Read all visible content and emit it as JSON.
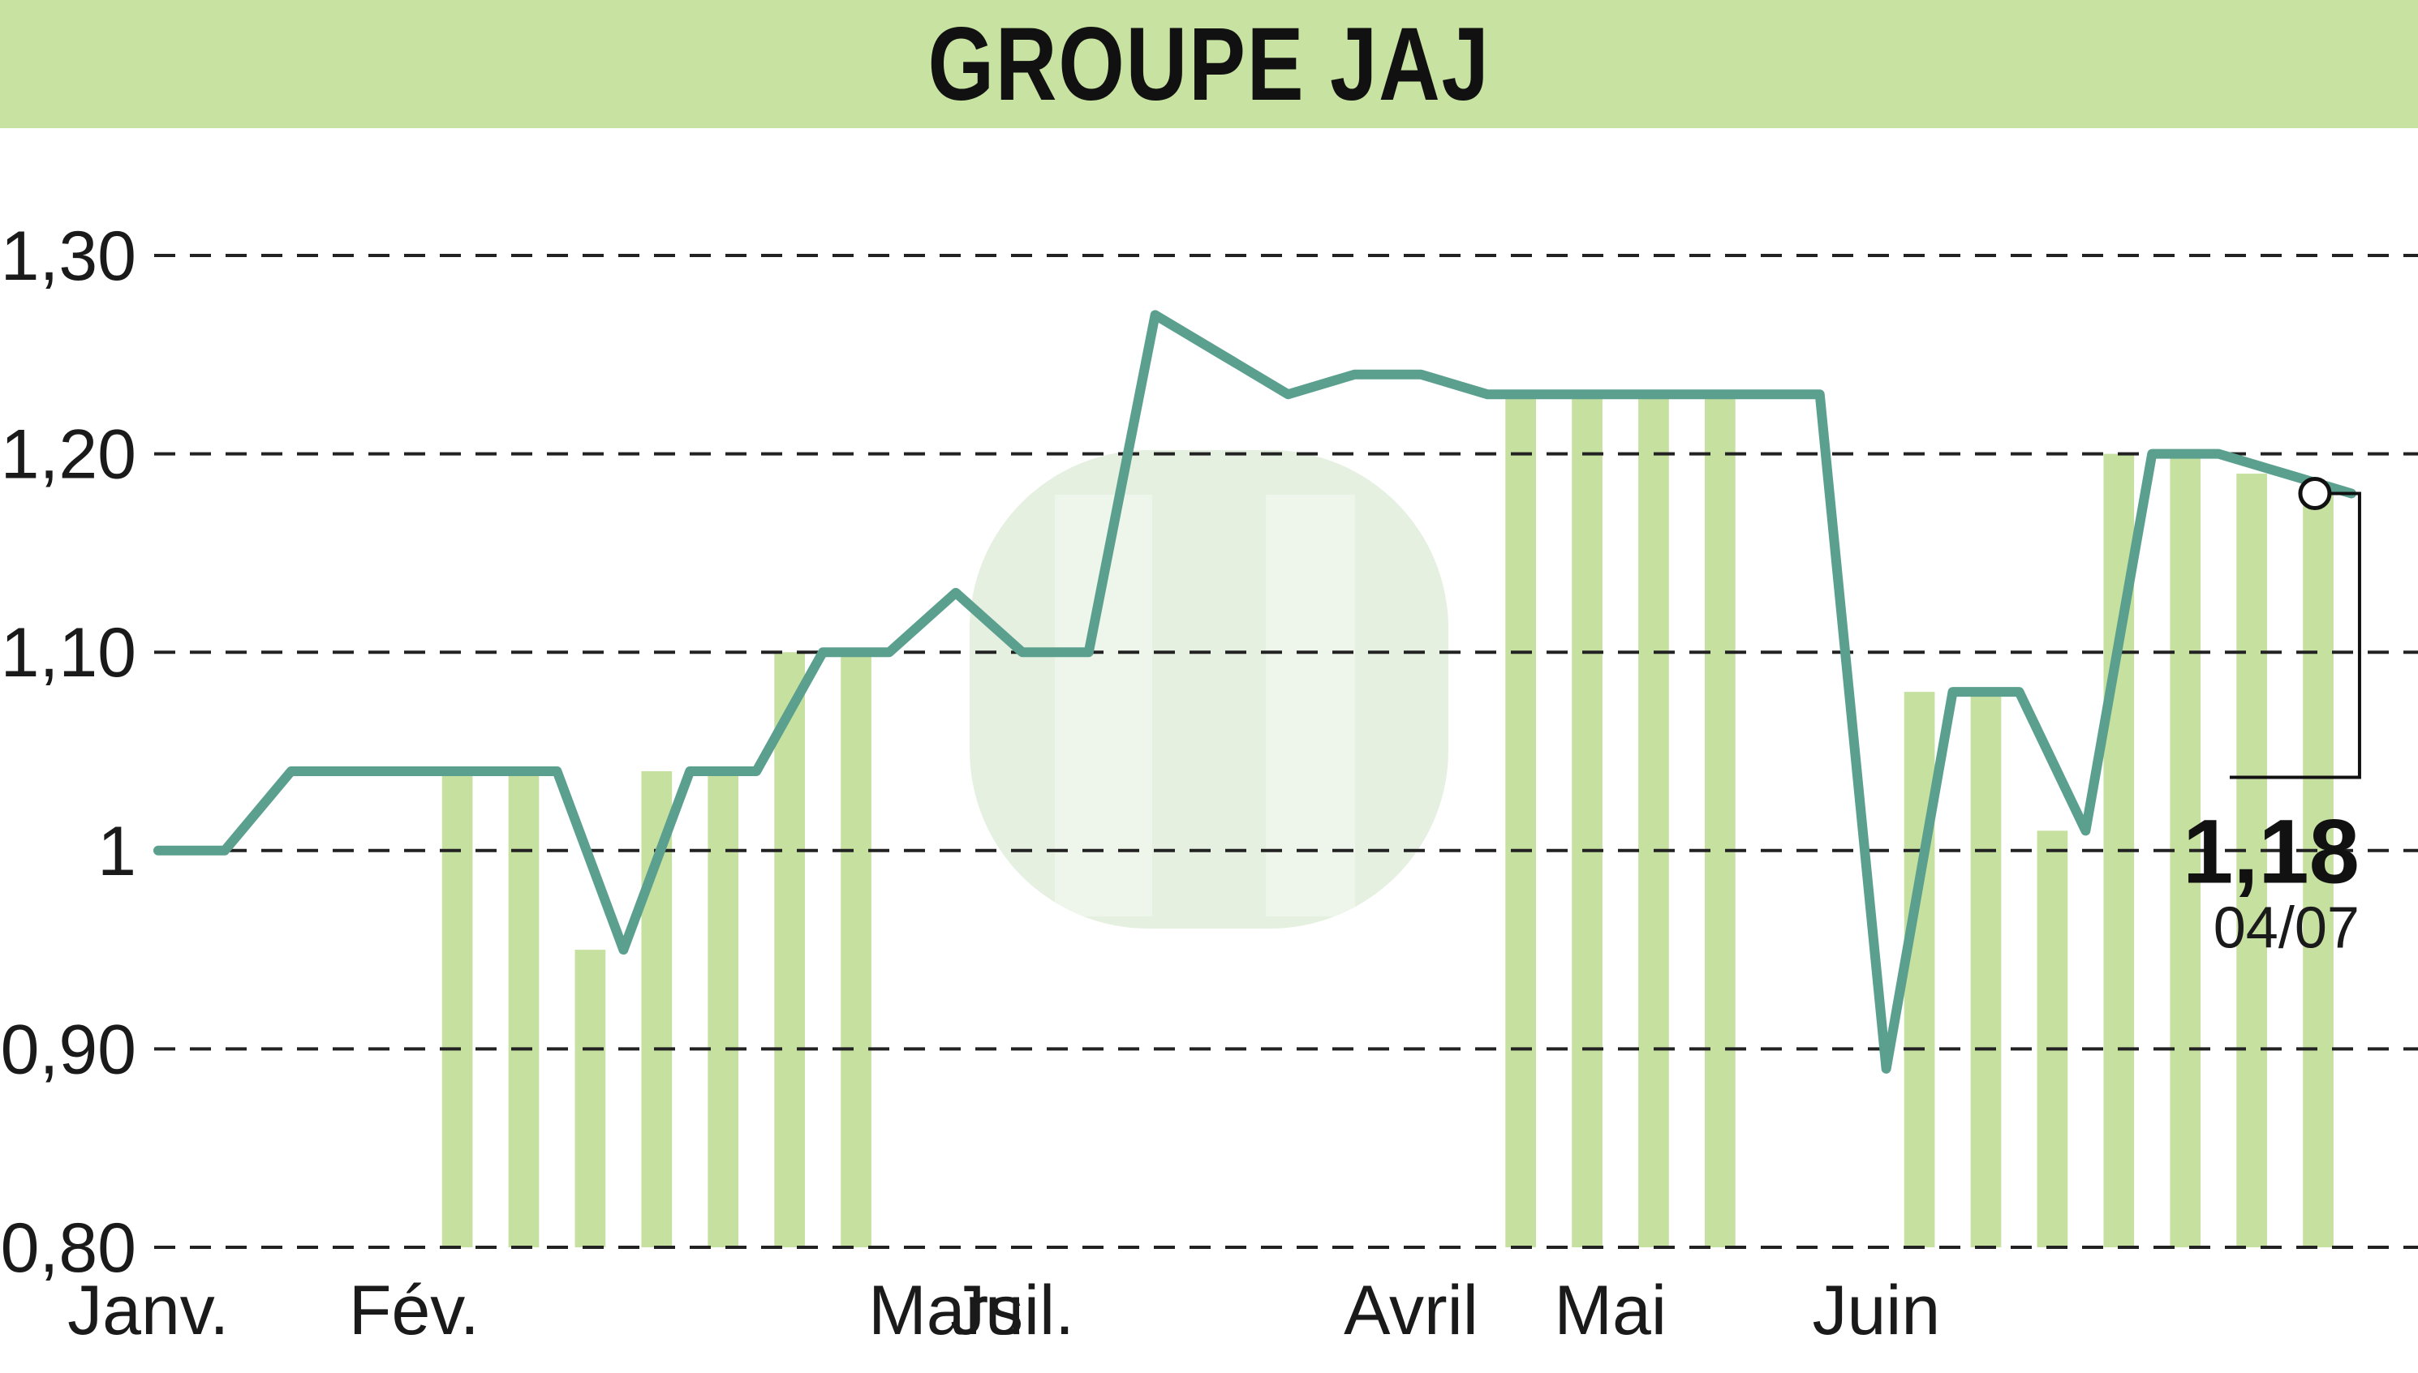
{
  "title": "GROUPE JAJ",
  "colors": {
    "header_bg": "#c8e2a2",
    "bar": "#c6e0a0",
    "line": "#5ba08e",
    "grid": "#222222",
    "watermark": "#cfe4c8"
  },
  "chart_data": {
    "type": "line",
    "title": "GROUPE JAJ",
    "xlabel": "",
    "ylabel": "",
    "ylim": [
      0.8,
      1.3
    ],
    "yticks": [
      {
        "value": 1.3,
        "label": "1,30"
      },
      {
        "value": 1.2,
        "label": "1,20"
      },
      {
        "value": 1.1,
        "label": "1,10"
      },
      {
        "value": 1.0,
        "label": "1"
      },
      {
        "value": 0.9,
        "label": "0,90"
      },
      {
        "value": 0.8,
        "label": "0,80"
      }
    ],
    "grid": "horizontal-dashed",
    "month_labels": [
      {
        "label": "Janv.",
        "index": 0
      },
      {
        "label": "Fév.",
        "index": 4
      },
      {
        "label": "Mars",
        "index": 12
      },
      {
        "label": "Juil.",
        "index": 13
      },
      {
        "label": "Avril",
        "index": 19
      },
      {
        "label": "Mai",
        "index": 22
      },
      {
        "label": "Juin",
        "index": 26
      }
    ],
    "series": [
      {
        "values": [
          1.0,
          1.0,
          1.04,
          1.04,
          1.04,
          1.04,
          1.04,
          0.95,
          1.04,
          1.04,
          1.1,
          1.1,
          1.13,
          1.1,
          1.1,
          1.27,
          1.25,
          1.23,
          1.24,
          1.24,
          1.23,
          1.23,
          1.23,
          1.23,
          1.23,
          1.23,
          0.89,
          1.08,
          1.08,
          1.01,
          1.2,
          1.2,
          1.19,
          1.18
        ]
      }
    ],
    "background_bands": [
      5,
      6,
      7,
      8,
      9,
      10,
      11,
      21,
      22,
      23,
      24,
      27,
      28,
      29,
      30,
      31,
      32,
      33
    ],
    "last_value": {
      "value": 1.18,
      "label": "1,18",
      "date": "04/07"
    }
  }
}
